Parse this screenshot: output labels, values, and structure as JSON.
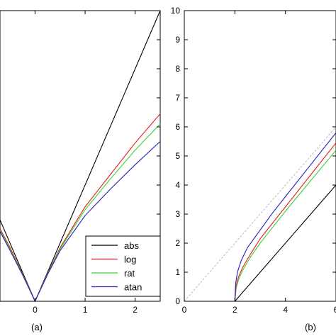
{
  "chart_data": [
    {
      "type": "line",
      "panel_label": "(a)",
      "xlim": [
        -0.7,
        2.5
      ],
      "ylim": [
        0,
        10
      ],
      "xticks": [
        0,
        1,
        2
      ],
      "grid": false,
      "legend": {
        "placement": "bottom-right",
        "entries": [
          "abs",
          "log",
          "rat",
          "atan"
        ]
      },
      "series": [
        {
          "name": "abs",
          "color": "#000000",
          "x": [
            -0.7,
            0,
            2.5
          ],
          "y": [
            2.8,
            0,
            10
          ]
        },
        {
          "name": "log",
          "color": "#e41a1c",
          "x": [
            -0.7,
            -0.5,
            -0.25,
            0,
            0.25,
            0.5,
            1.0,
            1.5,
            2.0,
            2.5
          ],
          "y": [
            2.5,
            1.85,
            0.95,
            0,
            0.96,
            1.84,
            3.25,
            4.35,
            5.45,
            6.45
          ]
        },
        {
          "name": "rat",
          "color": "#3ad13a",
          "x": [
            -0.7,
            -0.5,
            -0.25,
            0,
            0.25,
            0.5,
            1.0,
            1.5,
            2.0,
            2.5
          ],
          "y": [
            2.45,
            1.8,
            0.93,
            0,
            0.94,
            1.8,
            3.15,
            4.2,
            5.2,
            6.1
          ]
        },
        {
          "name": "atan",
          "color": "#2020c0",
          "x": [
            -0.7,
            -0.5,
            -0.25,
            0,
            0.25,
            0.5,
            1.0,
            1.5,
            2.0,
            2.5
          ],
          "y": [
            2.4,
            1.75,
            0.91,
            0,
            0.92,
            1.74,
            2.95,
            3.85,
            4.7,
            5.5
          ]
        }
      ]
    },
    {
      "type": "line",
      "panel_label": "(b)",
      "xlim": [
        0,
        6
      ],
      "ylim": [
        0,
        10
      ],
      "xticks": [
        0,
        2,
        4,
        6
      ],
      "yticks": [
        0,
        1,
        2,
        3,
        4,
        5,
        6,
        7,
        8,
        9,
        10
      ],
      "grid": false,
      "series": [
        {
          "color": "#000000",
          "x": [
            2,
            6
          ],
          "y": [
            0,
            4
          ]
        },
        {
          "color": "#c0c0c0",
          "dashed": true,
          "x": [
            0,
            6
          ],
          "y": [
            0,
            6
          ]
        },
        {
          "color": "#3ad13a",
          "x": [
            2,
            2.05,
            2.15,
            2.3,
            2.6,
            3.0,
            3.5,
            4.0,
            5.0,
            6.0
          ],
          "y": [
            0,
            0.45,
            0.75,
            1.05,
            1.5,
            2.0,
            2.55,
            3.1,
            4.15,
            5.2
          ]
        },
        {
          "color": "#e41a1c",
          "x": [
            2,
            2.05,
            2.15,
            2.3,
            2.6,
            3.0,
            3.5,
            4.0,
            5.0,
            6.0
          ],
          "y": [
            0,
            0.55,
            0.85,
            1.15,
            1.6,
            2.15,
            2.7,
            3.25,
            4.35,
            5.45
          ]
        },
        {
          "color": "#2020c0",
          "x": [
            2,
            2.03,
            2.1,
            2.25,
            2.5,
            3.0,
            3.5,
            4.0,
            5.0,
            6.0
          ],
          "y": [
            0,
            0.6,
            1.0,
            1.4,
            1.85,
            2.45,
            3.05,
            3.6,
            4.7,
            5.8
          ]
        }
      ]
    }
  ]
}
